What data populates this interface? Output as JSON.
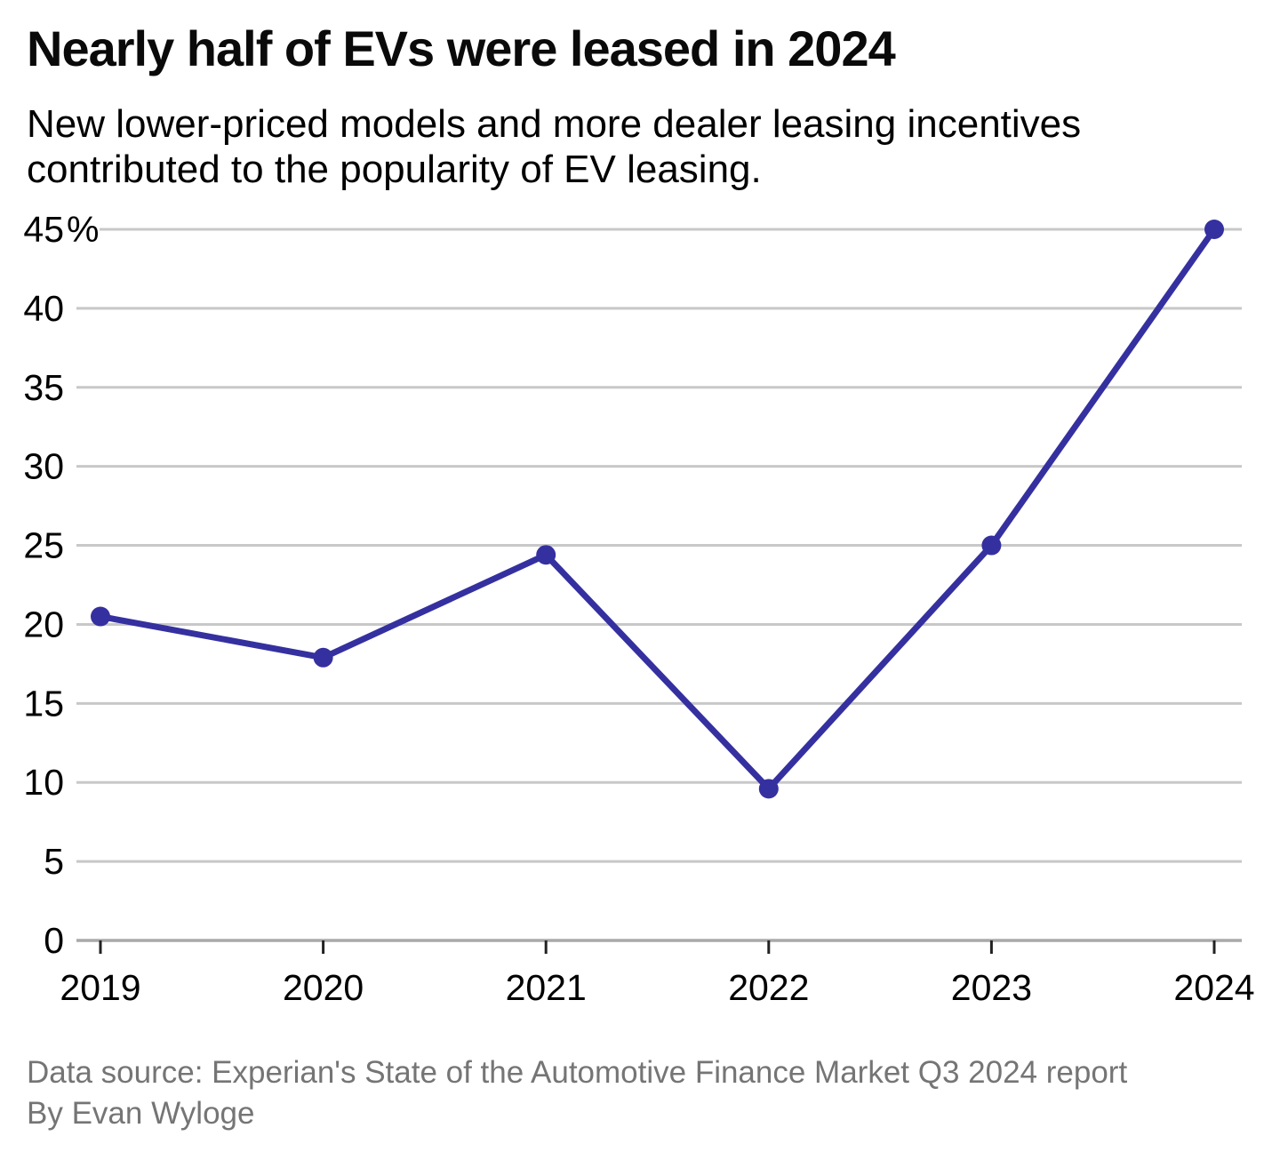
{
  "header": {
    "title": "Nearly half of EVs were leased in 2024",
    "subtitle": "New lower-priced models and more dealer leasing incentives contributed to the popularity of EV leasing."
  },
  "chart_data": {
    "type": "line",
    "title": "Nearly half of EVs were leased in 2024",
    "subtitle": "New lower-priced models and more dealer leasing incentives contributed to the popularity of EV leasing.",
    "x": [
      "2019",
      "2020",
      "2021",
      "2022",
      "2023",
      "2024"
    ],
    "values": [
      20.5,
      17.9,
      24.4,
      9.6,
      25,
      45
    ],
    "ylim": [
      0,
      45
    ],
    "ytick_values": [
      45,
      40,
      35,
      30,
      25,
      20,
      15,
      10,
      5,
      0
    ],
    "ytick_labels": [
      "45%",
      "40",
      "35",
      "30",
      "25",
      "20",
      "15",
      "10",
      "5",
      "0"
    ],
    "grid": true,
    "legend": "none",
    "colors": {
      "line": "#3530a0",
      "gridline": "#c8c8c8",
      "axis": "#a9a9a9",
      "tick": "#222222",
      "label": "#000000"
    }
  },
  "footer": {
    "source": "Data source: Experian's State of the Automotive Finance Market Q3 2024 report",
    "byline": "By Evan Wyloge"
  }
}
